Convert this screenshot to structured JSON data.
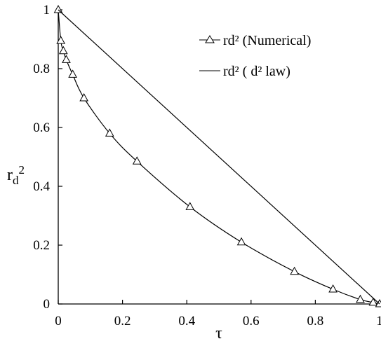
{
  "chart_data": {
    "type": "line",
    "title": "",
    "xlabel": "τ",
    "ylabel_main": "r",
    "ylabel_sub": "d",
    "ylabel_sup": "2",
    "xlim": [
      0,
      1
    ],
    "ylim": [
      0,
      1
    ],
    "x_ticks": [
      0,
      0.2,
      0.4,
      0.6,
      0.8,
      1
    ],
    "x_tick_labels": [
      "0",
      "0.2",
      "0.4",
      "0.6",
      "0.8",
      "1"
    ],
    "y_ticks": [
      0,
      0.2,
      0.4,
      0.6,
      0.8,
      1
    ],
    "y_tick_labels": [
      "0",
      "0.2",
      "0.4",
      "0.6",
      "0.8",
      "1"
    ],
    "grid": false,
    "legend_position": "top-right",
    "series": [
      {
        "name": "rd² (Numerical)",
        "marker": "triangle-open",
        "color": "#000000",
        "x": [
          0,
          0.008,
          0.016,
          0.025,
          0.045,
          0.08,
          0.16,
          0.245,
          0.41,
          0.57,
          0.735,
          0.855,
          0.94,
          0.98,
          1.0
        ],
        "y": [
          1.0,
          0.895,
          0.86,
          0.83,
          0.78,
          0.7,
          0.58,
          0.485,
          0.33,
          0.21,
          0.11,
          0.05,
          0.015,
          0.005,
          0.0
        ]
      },
      {
        "name": "rd² ( d² law)",
        "marker": "none",
        "color": "#000000",
        "x": [
          0,
          1
        ],
        "y": [
          1,
          0
        ]
      }
    ]
  }
}
